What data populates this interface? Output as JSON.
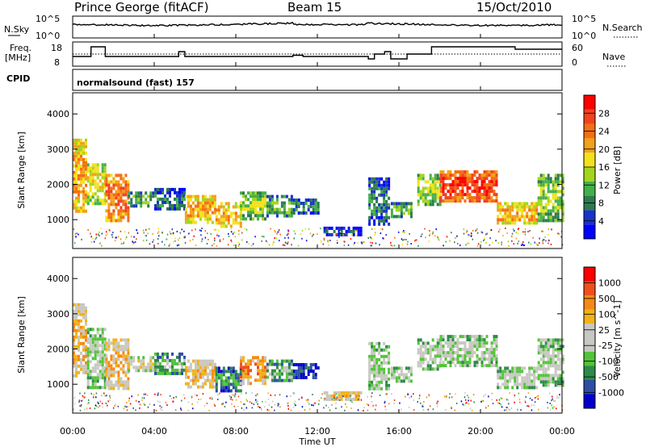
{
  "header": {
    "station": "Prince George (fitACF)",
    "beam": "Beam 15",
    "date": "15/Oct/2010"
  },
  "noise_panel": {
    "left_label": "N.Sky",
    "right_label": "N.Search",
    "left_ticks": [
      "10^5",
      "10^0"
    ],
    "right_ticks": [
      "10^5",
      "10^0"
    ]
  },
  "freq_panel": {
    "left_label_1": "Freq.",
    "left_label_2": "[MHz]",
    "left_ticks": [
      "18",
      "8"
    ],
    "right_label": "Nave",
    "right_ticks": [
      "60",
      "0"
    ],
    "freq_steps": [
      [
        0,
        12
      ],
      [
        0.9,
        16
      ],
      [
        1.6,
        12
      ],
      [
        5.2,
        14
      ],
      [
        5.5,
        12
      ],
      [
        10.8,
        12.5
      ],
      [
        11.3,
        12
      ],
      [
        14.5,
        11
      ],
      [
        14.8,
        13
      ],
      [
        15.3,
        14
      ],
      [
        15.6,
        11
      ],
      [
        16.4,
        13
      ],
      [
        17.6,
        16
      ],
      [
        21.7,
        15
      ],
      [
        24,
        15
      ]
    ],
    "nave_level": 13
  },
  "cpid": {
    "label": "CPID",
    "text": "normalsound (fast) 157"
  },
  "power_panel": {
    "ylabel": "Slant Range [km]",
    "yticks": [
      "4000",
      "3000",
      "2000",
      "1000"
    ],
    "colorbar_label": "Power [dB]",
    "colorbar_ticks": [
      "28",
      "24",
      "20",
      "16",
      "12",
      "8",
      "4"
    ],
    "colors": [
      "#0000ff",
      "#1a33c8",
      "#2e7a4f",
      "#44b04a",
      "#a4d41b",
      "#f2e21a",
      "#f2a11a",
      "#f56e13",
      "#f0421e",
      "#ff0000"
    ]
  },
  "velocity_panel": {
    "ylabel": "Slant Range [km]",
    "yticks": [
      "4000",
      "3000",
      "2000",
      "1000"
    ],
    "colorbar_label": "Velocity [m s^-1]",
    "colorbar_ticks": [
      "1000",
      "500",
      "100",
      "25",
      "-25",
      "-100",
      "-500",
      "-1000"
    ],
    "colors": [
      "#0000cc",
      "#2e4ea6",
      "#2e8a4a",
      "#53c43a",
      "#c8c8c2",
      "#c8c8c2",
      "#f2b21a",
      "#f58a13",
      "#ef501e",
      "#ff0000"
    ]
  },
  "xaxis": {
    "label": "Time UT",
    "ticks": [
      "00:00",
      "04:00",
      "08:00",
      "12:00",
      "16:00",
      "20:00",
      "00:00"
    ]
  },
  "chart_data": {
    "type": "heatmap",
    "x_range_hours": [
      0,
      24
    ],
    "y_range_km": [
      180,
      4600
    ],
    "power_segments": [
      {
        "t0": 0.0,
        "t1": 0.7,
        "r0": 1200,
        "r1": 3300,
        "level": 6
      },
      {
        "t0": 0.7,
        "t1": 1.6,
        "r0": 1500,
        "r1": 2600,
        "level": 5
      },
      {
        "t0": 1.6,
        "t1": 2.7,
        "r0": 950,
        "r1": 2300,
        "level": 7
      },
      {
        "t0": 2.7,
        "t1": 4.0,
        "r0": 1400,
        "r1": 1800,
        "level": 3
      },
      {
        "t0": 4.0,
        "t1": 5.5,
        "r0": 1300,
        "r1": 1900,
        "level": 2
      },
      {
        "t0": 5.5,
        "t1": 7.0,
        "r0": 900,
        "r1": 1700,
        "level": 6
      },
      {
        "t0": 7.0,
        "t1": 8.2,
        "r0": 850,
        "r1": 1500,
        "level": 6
      },
      {
        "t0": 8.2,
        "t1": 9.5,
        "r0": 1000,
        "r1": 1800,
        "level": 4
      },
      {
        "t0": 9.5,
        "t1": 10.8,
        "r0": 1100,
        "r1": 1700,
        "level": 3
      },
      {
        "t0": 10.8,
        "t1": 12.0,
        "r0": 1200,
        "r1": 1600,
        "level": 2
      },
      {
        "t0": 12.3,
        "t1": 14.2,
        "r0": 600,
        "r1": 800,
        "level": 1
      },
      {
        "t0": 14.5,
        "t1": 15.5,
        "r0": 900,
        "r1": 2200,
        "level": 2
      },
      {
        "t0": 15.6,
        "t1": 16.6,
        "r0": 1100,
        "r1": 1500,
        "level": 3
      },
      {
        "t0": 16.9,
        "t1": 18.0,
        "r0": 1400,
        "r1": 2300,
        "level": 4
      },
      {
        "t0": 18.0,
        "t1": 20.8,
        "r0": 1500,
        "r1": 2400,
        "level": 8
      },
      {
        "t0": 20.8,
        "t1": 22.8,
        "r0": 900,
        "r1": 1500,
        "level": 6
      },
      {
        "t0": 22.8,
        "t1": 24.0,
        "r0": 1000,
        "r1": 2300,
        "level": 4
      }
    ],
    "velocity_segments": [
      {
        "t0": 0.0,
        "t1": 0.7,
        "r0": 1200,
        "r1": 3300,
        "level": 6
      },
      {
        "t0": 0.7,
        "t1": 1.6,
        "r0": 900,
        "r1": 2600,
        "level": 4
      },
      {
        "t0": 1.6,
        "t1": 2.7,
        "r0": 900,
        "r1": 2300,
        "level": 6
      },
      {
        "t0": 2.7,
        "t1": 4.0,
        "r0": 1400,
        "r1": 1800,
        "level": 5
      },
      {
        "t0": 4.0,
        "t1": 5.5,
        "r0": 1300,
        "r1": 1900,
        "level": 3
      },
      {
        "t0": 5.5,
        "t1": 7.0,
        "r0": 900,
        "r1": 1700,
        "level": 6
      },
      {
        "t0": 7.0,
        "t1": 8.2,
        "r0": 850,
        "r1": 1500,
        "level": 2
      },
      {
        "t0": 8.2,
        "t1": 9.5,
        "r0": 1000,
        "r1": 1800,
        "level": 7
      },
      {
        "t0": 9.5,
        "t1": 10.8,
        "r0": 1100,
        "r1": 1700,
        "level": 3
      },
      {
        "t0": 10.8,
        "t1": 12.0,
        "r0": 1200,
        "r1": 1600,
        "level": 1
      },
      {
        "t0": 12.3,
        "t1": 14.2,
        "r0": 600,
        "r1": 800,
        "level": 6
      },
      {
        "t0": 14.5,
        "t1": 15.5,
        "r0": 900,
        "r1": 2200,
        "level": 4
      },
      {
        "t0": 15.6,
        "t1": 16.6,
        "r0": 1100,
        "r1": 1500,
        "level": 4
      },
      {
        "t0": 16.9,
        "t1": 18.0,
        "r0": 1400,
        "r1": 2300,
        "level": 4
      },
      {
        "t0": 18.0,
        "t1": 20.8,
        "r0": 1500,
        "r1": 2400,
        "level": 4
      },
      {
        "t0": 20.8,
        "t1": 22.8,
        "r0": 900,
        "r1": 1500,
        "level": 4
      },
      {
        "t0": 22.8,
        "t1": 24.0,
        "r0": 1000,
        "r1": 2300,
        "level": 4
      }
    ]
  }
}
